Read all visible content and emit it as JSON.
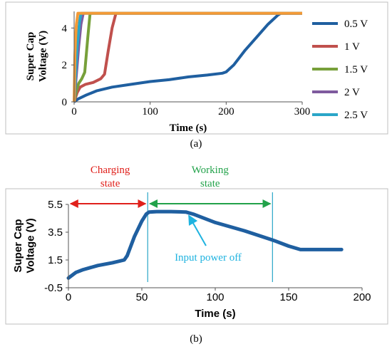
{
  "chart_data": [
    {
      "id": "a",
      "type": "line",
      "caption": "(a)",
      "xlabel": "Time  (s)",
      "ylabel": "Super Cap Voltage (V)",
      "xlim": [
        0,
        300
      ],
      "ylim": [
        0,
        4.9
      ],
      "xticks": [
        "0",
        "100",
        "200",
        "300"
      ],
      "yticks": [
        "0",
        "2",
        "4"
      ],
      "legend_position": "right",
      "series": [
        {
          "name": "0.5 V",
          "color": "#1f5fa0",
          "points": [
            [
              0,
              0
            ],
            [
              5,
              0.15
            ],
            [
              15,
              0.35
            ],
            [
              30,
              0.6
            ],
            [
              50,
              0.8
            ],
            [
              75,
              0.95
            ],
            [
              100,
              1.1
            ],
            [
              125,
              1.2
            ],
            [
              150,
              1.35
            ],
            [
              175,
              1.45
            ],
            [
              195,
              1.55
            ],
            [
              200,
              1.62
            ],
            [
              210,
              2.0
            ],
            [
              225,
              2.8
            ],
            [
              240,
              3.5
            ],
            [
              255,
              4.2
            ],
            [
              268,
              4.7
            ],
            [
              272,
              4.8
            ],
            [
              300,
              4.8
            ]
          ]
        },
        {
          "name": "1 V",
          "color": "#c0504d",
          "points": [
            [
              0,
              0
            ],
            [
              4,
              0.5
            ],
            [
              8,
              0.8
            ],
            [
              15,
              0.95
            ],
            [
              25,
              1.05
            ],
            [
              35,
              1.25
            ],
            [
              40,
              1.5
            ],
            [
              45,
              2.8
            ],
            [
              50,
              4.0
            ],
            [
              55,
              4.8
            ],
            [
              300,
              4.8
            ]
          ]
        },
        {
          "name": "1.5 V",
          "color": "#77a03a",
          "points": [
            [
              0,
              0
            ],
            [
              3,
              0.6
            ],
            [
              6,
              1.0
            ],
            [
              10,
              1.25
            ],
            [
              14,
              1.6
            ],
            [
              18,
              3.5
            ],
            [
              21,
              4.8
            ],
            [
              300,
              4.8
            ]
          ]
        },
        {
          "name": "2 V",
          "color": "#7f5a9e",
          "points": [
            [
              0,
              0
            ],
            [
              3,
              1.5
            ],
            [
              6,
              3.0
            ],
            [
              9,
              4.2
            ],
            [
              12,
              4.8
            ],
            [
              300,
              4.8
            ]
          ]
        },
        {
          "name": "2.5 V",
          "color": "#2aa6c8",
          "points": [
            [
              0,
              0
            ],
            [
              2,
              1.5
            ],
            [
              4,
              3.0
            ],
            [
              7,
              4.3
            ],
            [
              9,
              4.8
            ],
            [
              300,
              4.8
            ]
          ]
        }
      ],
      "extra_series_color": "#f39a36",
      "extra_series_points": [
        [
          0,
          0
        ],
        [
          1,
          2.5
        ],
        [
          2,
          3.5
        ],
        [
          3,
          4.2
        ],
        [
          5,
          4.8
        ],
        [
          300,
          4.8
        ]
      ]
    },
    {
      "id": "b",
      "type": "line",
      "caption": "(b)",
      "xlabel": "Time (s)",
      "ylabel": "Super Cap Voltage (V)",
      "xlim": [
        0,
        200
      ],
      "ylim": [
        -0.5,
        5.5
      ],
      "xticks": [
        "0",
        "50",
        "100",
        "150",
        "200"
      ],
      "yticks": [
        "-0.5",
        "1.5",
        "3.5",
        "5.5"
      ],
      "line_color": "#1f5fa0",
      "points": [
        [
          0,
          0.2
        ],
        [
          5,
          0.6
        ],
        [
          10,
          0.8
        ],
        [
          20,
          1.1
        ],
        [
          30,
          1.3
        ],
        [
          38,
          1.5
        ],
        [
          40,
          1.8
        ],
        [
          45,
          3.2
        ],
        [
          50,
          4.3
        ],
        [
          53,
          4.8
        ],
        [
          55,
          4.95
        ],
        [
          60,
          4.98
        ],
        [
          70,
          4.98
        ],
        [
          80,
          4.95
        ],
        [
          85,
          4.8
        ],
        [
          100,
          4.2
        ],
        [
          120,
          3.6
        ],
        [
          140,
          2.9
        ],
        [
          150,
          2.5
        ],
        [
          158,
          2.25
        ],
        [
          170,
          2.25
        ],
        [
          186,
          2.25
        ]
      ],
      "markers_x": [
        54,
        139
      ],
      "annotations": {
        "charging": "Charging\nstate",
        "working": "Working\nstate",
        "power_off": "Input power off"
      },
      "colors": {
        "charging": "#e0201b",
        "working": "#22a24a",
        "power_off": "#1fb3e0"
      }
    }
  ]
}
